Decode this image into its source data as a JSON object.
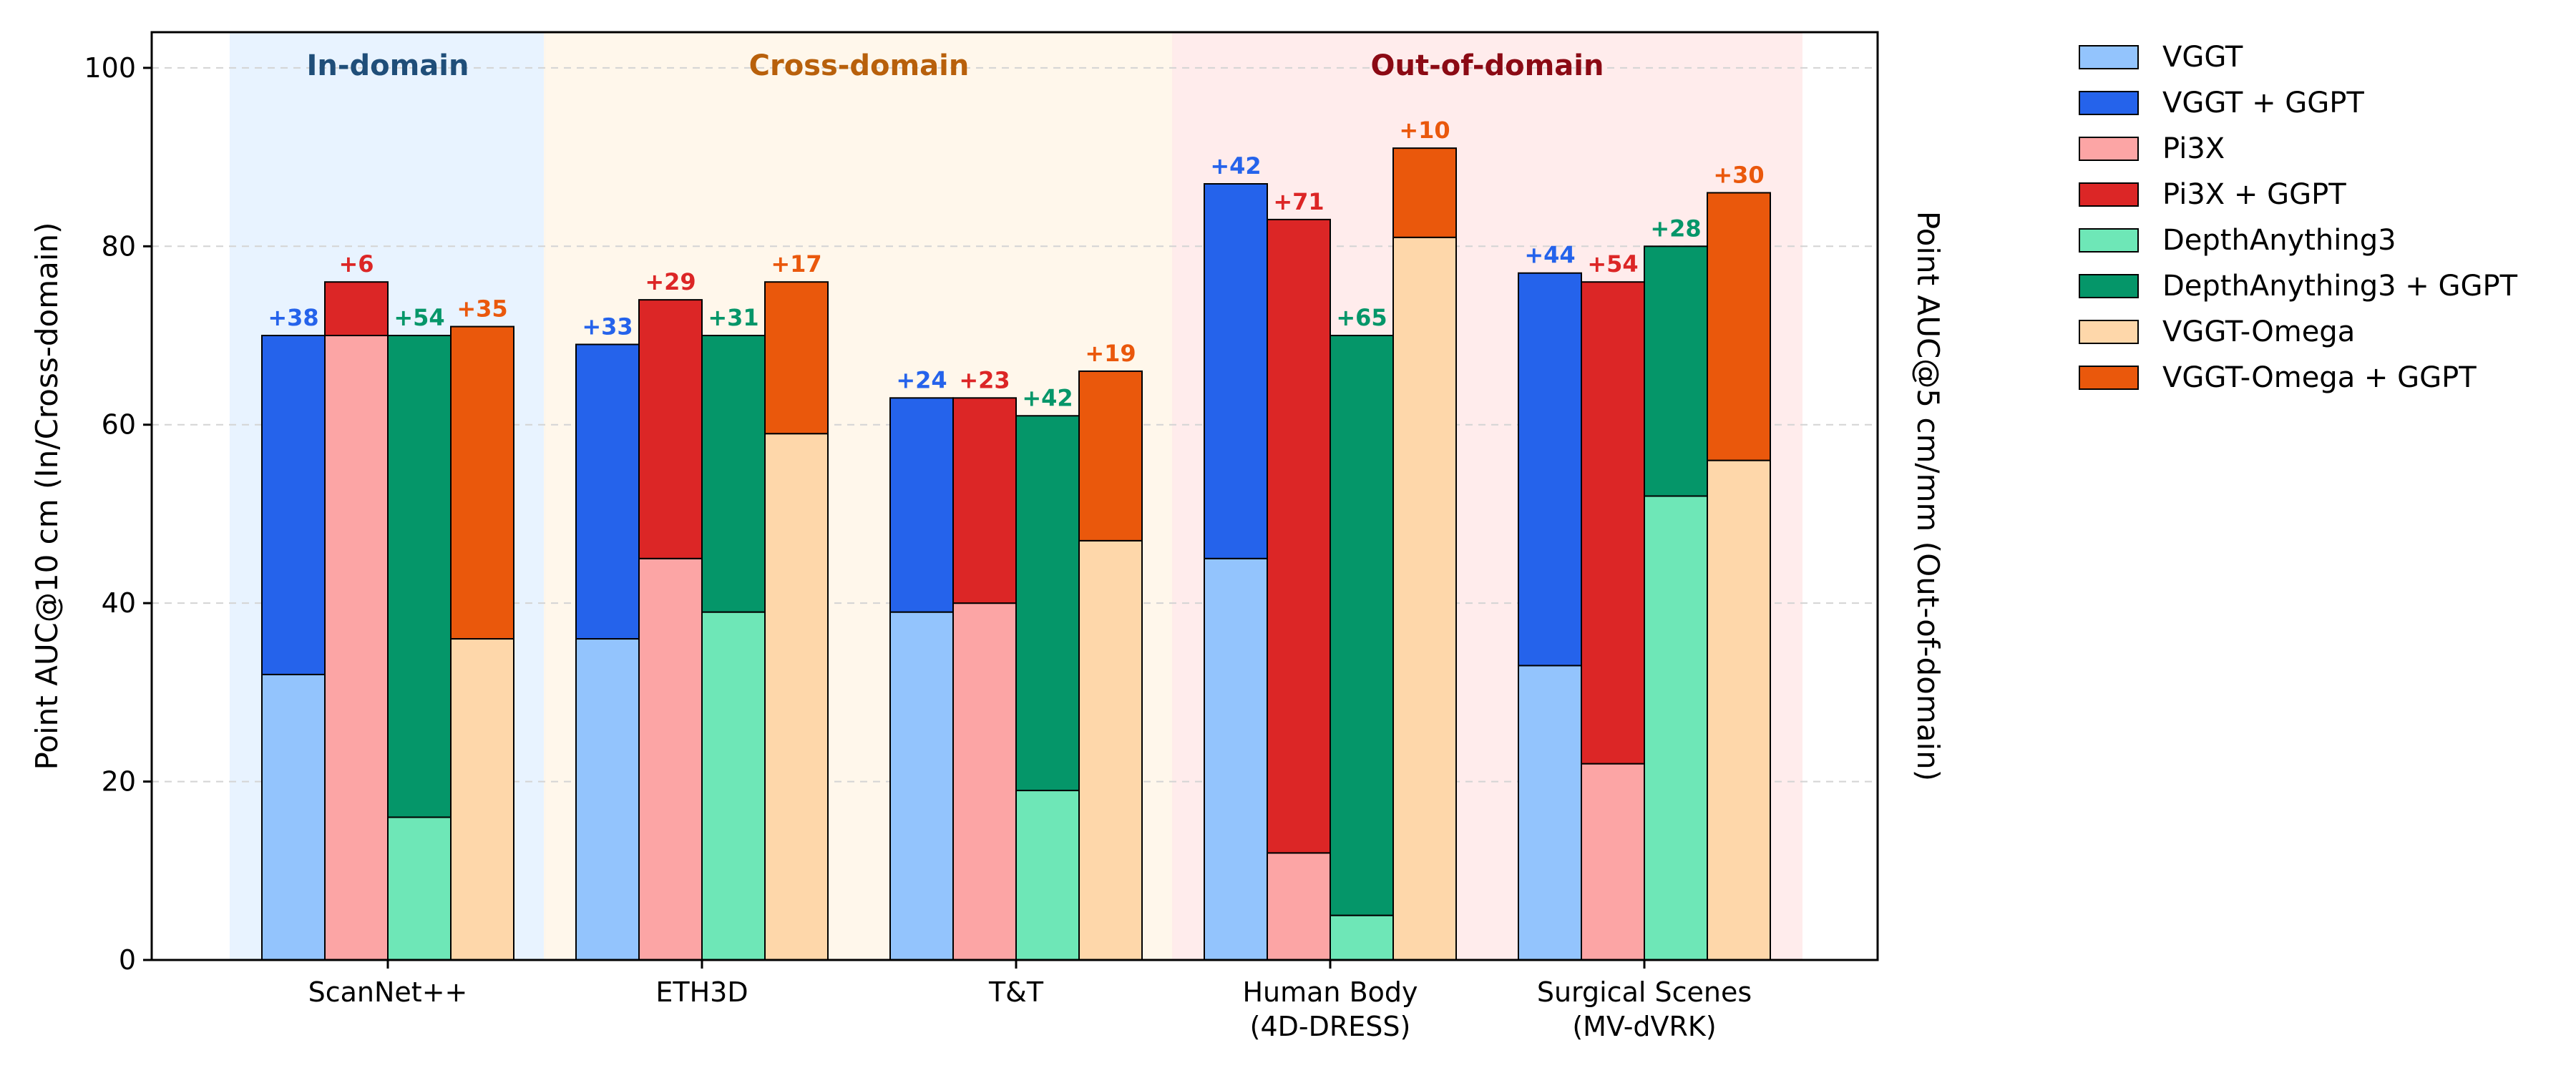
{
  "chart_data": {
    "type": "bar",
    "ylabel_left": "Point AUC@10 cm (In/Cross-domain)",
    "ylabel_right": "Point AUC@5 cm/mm (Out-of-domain)",
    "ylim": [
      0,
      104
    ],
    "yticks": [
      0,
      20,
      40,
      60,
      80,
      100
    ],
    "grid": "horizontal dashed",
    "legend_placement": "outside right",
    "categories": [
      [
        "ScanNet++"
      ],
      [
        "ETH3D"
      ],
      [
        "T&T"
      ],
      [
        "Human Body",
        "(4D-DRESS)"
      ],
      [
        "Surgical Scenes",
        "(MV-dVRK)"
      ]
    ],
    "regions": [
      {
        "label": "In-domain",
        "start": 0,
        "end": 0,
        "color": "#1f4e79",
        "bg": "#e6f2ff"
      },
      {
        "label": "Cross-domain",
        "start": 1,
        "end": 2,
        "color": "#b8600b",
        "bg": "#fff6e9"
      },
      {
        "label": "Out-of-domain",
        "start": 3,
        "end": 4,
        "color": "#8b0a14",
        "bg": "#ffeaea"
      }
    ],
    "methods": [
      {
        "name": "VGGT",
        "enhanced_name": "VGGT + GGPT",
        "base_color": "#93c4fd",
        "gain_color": "#2563eb",
        "base": [
          32,
          36,
          39,
          45,
          33
        ],
        "gain_labels": [
          "+38",
          "+33",
          "+24",
          "+42",
          "+44"
        ]
      },
      {
        "name": "Pi3X",
        "enhanced_name": "Pi3X + GGPT",
        "base_color": "#fca5a5",
        "gain_color": "#dc2626",
        "base": [
          70,
          45,
          40,
          12,
          22
        ],
        "gain_labels": [
          "+6",
          "+29",
          "+23",
          "+71",
          "+54"
        ]
      },
      {
        "name": "DepthAnything3",
        "enhanced_name": "DepthAnything3 + GGPT",
        "base_color": "#6ee7b7",
        "gain_color": "#059669",
        "base": [
          16,
          39,
          19,
          5,
          52
        ],
        "gain_labels": [
          "+54",
          "+31",
          "+42",
          "+65",
          "+28"
        ]
      },
      {
        "name": "VGGT-Omega",
        "enhanced_name": "VGGT-Omega + GGPT",
        "base_color": "#fed7aa",
        "gain_color": "#ea580c",
        "base": [
          36,
          59,
          47,
          81,
          56
        ],
        "gain_labels": [
          "+35",
          "+17",
          "+19",
          "+10",
          "+30"
        ]
      }
    ]
  }
}
